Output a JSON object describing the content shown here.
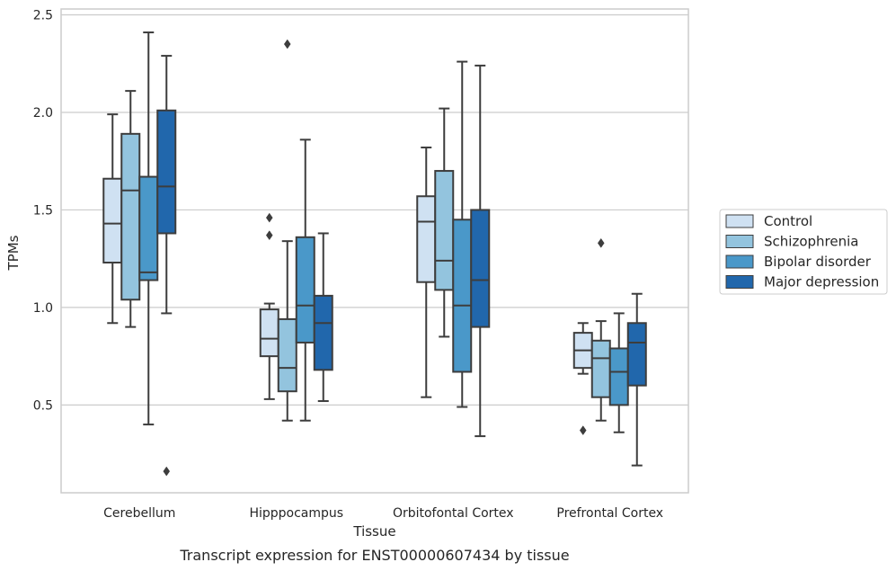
{
  "chart_data": {
    "type": "box",
    "title": "",
    "caption": "Transcript expression for ENST00000607434 by tissue",
    "xlabel": "Tissue",
    "ylabel": "TPMs",
    "ylim": [
      0.05,
      2.53
    ],
    "yticks": [
      0.5,
      1.0,
      1.5,
      2.0,
      2.5
    ],
    "ytick_labels": [
      "0.5",
      "1.0",
      "1.5",
      "2.0",
      "2.5"
    ],
    "grid": "horizontal",
    "legend_position": "right",
    "categories": [
      "Cerebellum",
      "Hipppocampus",
      "Orbitofontal Cortex",
      "Prefrontal Cortex"
    ],
    "series": [
      {
        "name": "Control",
        "color": "#cfe1f2",
        "boxes": [
          {
            "whislo": 0.92,
            "q1": 1.23,
            "med": 1.43,
            "q3": 1.66,
            "whishi": 1.99,
            "fliers": []
          },
          {
            "whislo": 0.53,
            "q1": 0.75,
            "med": 0.84,
            "q3": 0.99,
            "whishi": 1.02,
            "fliers": [
              1.37,
              1.46
            ]
          },
          {
            "whislo": 0.54,
            "q1": 1.13,
            "med": 1.44,
            "q3": 1.57,
            "whishi": 1.82,
            "fliers": []
          },
          {
            "whislo": 0.66,
            "q1": 0.69,
            "med": 0.78,
            "q3": 0.87,
            "whishi": 0.92,
            "fliers": [
              0.37
            ]
          }
        ]
      },
      {
        "name": "Schizophrenia",
        "color": "#93c4de",
        "boxes": [
          {
            "whislo": 0.9,
            "q1": 1.04,
            "med": 1.6,
            "q3": 1.89,
            "whishi": 2.11,
            "fliers": []
          },
          {
            "whislo": 0.42,
            "q1": 0.57,
            "med": 0.69,
            "q3": 0.94,
            "whishi": 1.34,
            "fliers": [
              2.35
            ]
          },
          {
            "whislo": 0.85,
            "q1": 1.09,
            "med": 1.24,
            "q3": 1.7,
            "whishi": 2.02,
            "fliers": []
          },
          {
            "whislo": 0.42,
            "q1": 0.54,
            "med": 0.74,
            "q3": 0.83,
            "whishi": 0.93,
            "fliers": [
              1.33
            ]
          }
        ]
      },
      {
        "name": "Bipolar disorder",
        "color": "#4a98c9",
        "boxes": [
          {
            "whislo": 0.4,
            "q1": 1.14,
            "med": 1.18,
            "q3": 1.67,
            "whishi": 2.41,
            "fliers": []
          },
          {
            "whislo": 0.42,
            "q1": 0.82,
            "med": 1.01,
            "q3": 1.36,
            "whishi": 1.86,
            "fliers": []
          },
          {
            "whislo": 0.49,
            "q1": 0.67,
            "med": 1.01,
            "q3": 1.45,
            "whishi": 2.26,
            "fliers": []
          },
          {
            "whislo": 0.36,
            "q1": 0.5,
            "med": 0.67,
            "q3": 0.79,
            "whishi": 0.97,
            "fliers": []
          }
        ]
      },
      {
        "name": "Major depression",
        "color": "#2167ac",
        "boxes": [
          {
            "whislo": 0.97,
            "q1": 1.38,
            "med": 1.62,
            "q3": 2.01,
            "whishi": 2.29,
            "fliers": [
              0.16
            ]
          },
          {
            "whislo": 0.52,
            "q1": 0.68,
            "med": 0.92,
            "q3": 1.06,
            "whishi": 1.38,
            "fliers": []
          },
          {
            "whislo": 0.34,
            "q1": 0.9,
            "med": 1.14,
            "q3": 1.5,
            "whishi": 2.24,
            "fliers": []
          },
          {
            "whislo": 0.19,
            "q1": 0.6,
            "med": 0.82,
            "q3": 0.92,
            "whishi": 1.07,
            "fliers": []
          }
        ]
      }
    ]
  }
}
